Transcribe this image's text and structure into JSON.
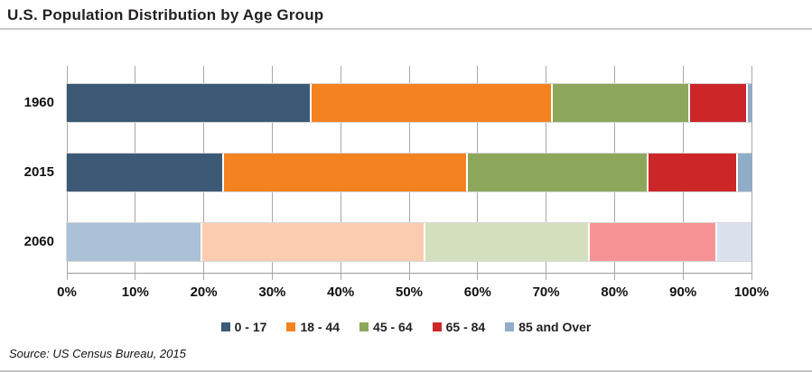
{
  "title": "U.S. Population Distribution by Age Group",
  "source": "Source: US Census Bureau, 2015",
  "chart_data": {
    "type": "bar",
    "orientation": "horizontal-stacked",
    "title": "U.S. Population Distribution by Age Group",
    "categories": [
      "1960",
      "2015",
      "2060"
    ],
    "series": [
      {
        "name": "0 - 17",
        "values": [
          35.7,
          22.9,
          19.8
        ]
      },
      {
        "name": "18 - 44",
        "values": [
          35.3,
          35.7,
          32.6
        ]
      },
      {
        "name": "45 - 64",
        "values": [
          20.0,
          26.4,
          24.0
        ]
      },
      {
        "name": "65 - 84",
        "values": [
          8.5,
          13.0,
          18.6
        ]
      },
      {
        "name": "85 and Over",
        "values": [
          0.5,
          2.0,
          5.0
        ]
      }
    ],
    "x_ticks": [
      "0%",
      "10%",
      "20%",
      "30%",
      "40%",
      "50%",
      "60%",
      "70%",
      "80%",
      "90%",
      "100%"
    ],
    "xlim": [
      0,
      100
    ],
    "grid": "vertical",
    "legend_position": "bottom",
    "colors": [
      "#3C5A76",
      "#F58220",
      "#8CA75C",
      "#CC2628",
      "#8FACC9"
    ],
    "muted_colors": [
      "#AAC1D8",
      "#FBCCAF",
      "#D4DFBE",
      "#F59395",
      "#DAE1EC"
    ],
    "muted_category": "2060",
    "gridline_color": "#A8A8A8",
    "annotation": "Source: US Census Bureau, 2015"
  }
}
